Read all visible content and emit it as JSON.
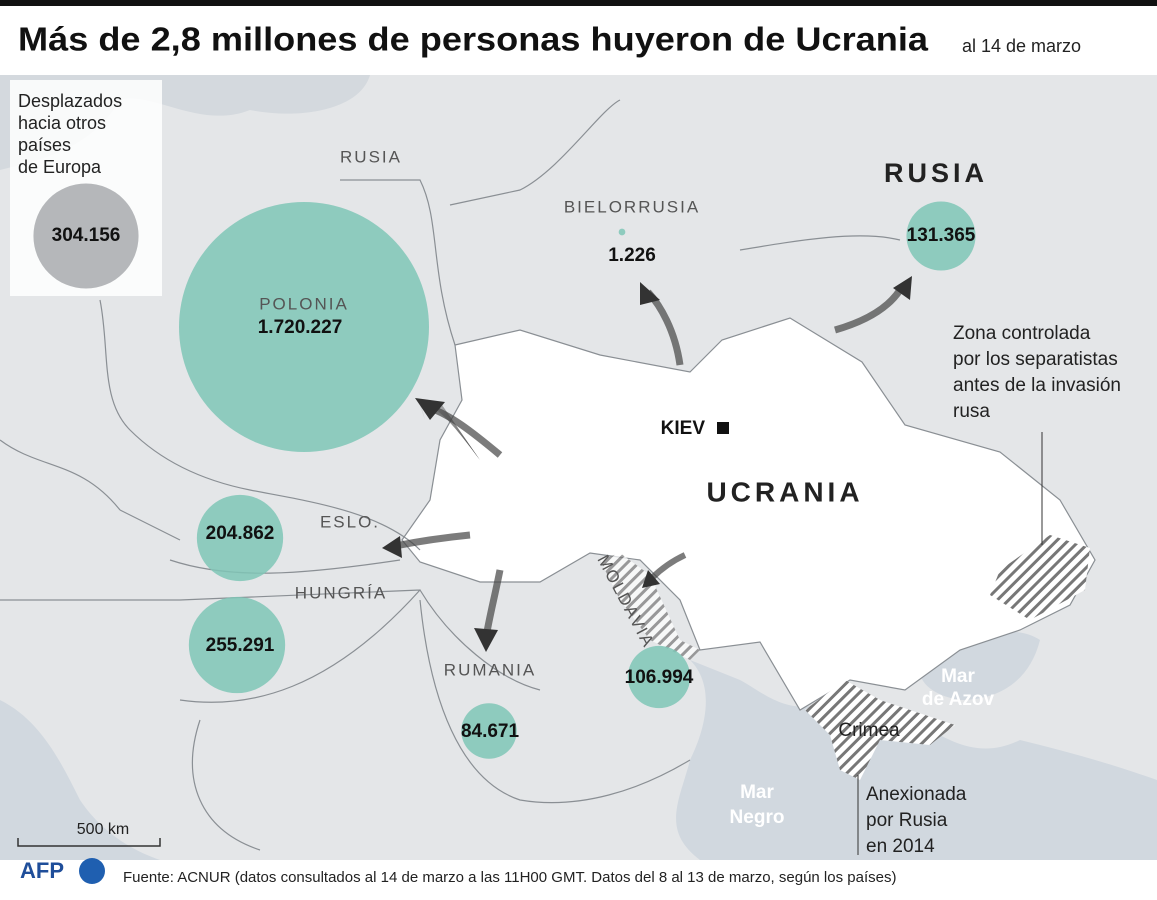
{
  "title": "Más de 2,8 millones de personas huyeron de Ucrania",
  "subtitle": "al 14 de marzo",
  "legend": {
    "lines": [
      "Desplazados",
      "hacia otros",
      "países",
      "de Europa"
    ],
    "value": 304156,
    "label": "304.156"
  },
  "countries": [
    {
      "name": "POLONIA",
      "value": 1720227,
      "label": "1.720.227"
    },
    {
      "name": "RUSIA",
      "value": 131365,
      "label": "131.365"
    },
    {
      "name": "BIELORRUSIA",
      "value": 1226,
      "label": "1.226"
    },
    {
      "name": "ESLO.",
      "value": 204862,
      "label": "204.862"
    },
    {
      "name": "HUNGRÍA",
      "value": 255291,
      "label": "255.291"
    },
    {
      "name": "MOLDAVIA",
      "value": 106994,
      "label": "106.994"
    },
    {
      "name": "RUMANIA",
      "value": 84671,
      "label": "84.671"
    }
  ],
  "place_labels": {
    "kaliningrad": "RUSIA",
    "ukraine": "UCRANIA",
    "capital": "KIEV"
  },
  "annotations": {
    "separatist": [
      "Zona controlada",
      "por los separatistas",
      "antes de la invasión",
      "rusa"
    ],
    "crimea": "Crimea",
    "annexed": [
      "Anexionada",
      "por Rusia",
      "en 2014"
    ],
    "azov": [
      "Mar",
      "de Azov"
    ],
    "black_sea": [
      "Mar",
      "Negro"
    ]
  },
  "scale": "500 km",
  "logo": "AFP",
  "source": "Fuente:  ACNUR (datos consultados al 14 de marzo a las 11H00 GMT. Datos del 8 al 13 de marzo, según los países)"
}
